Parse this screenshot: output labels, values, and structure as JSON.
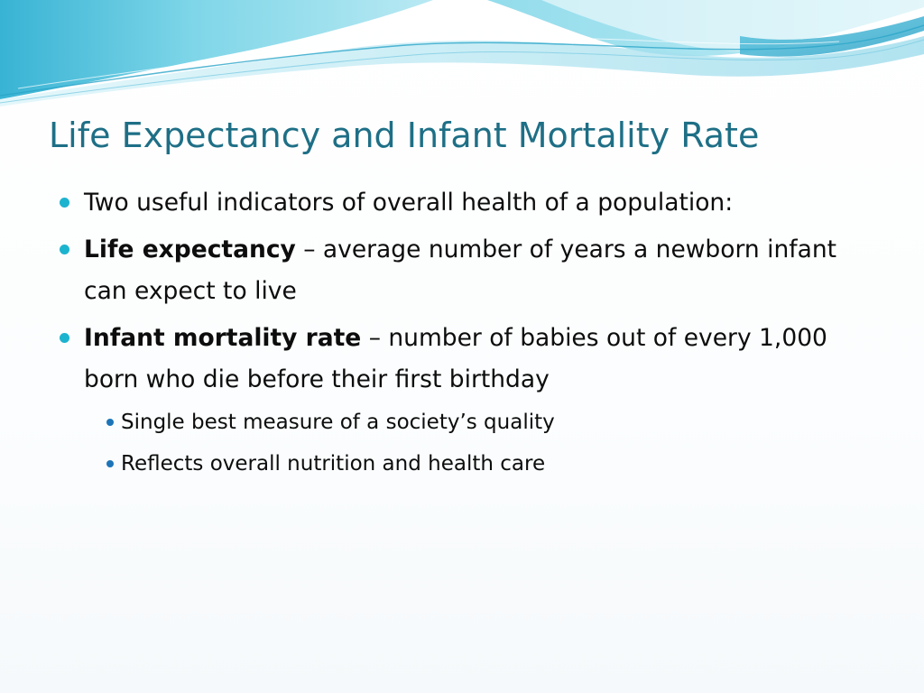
{
  "slide": {
    "title": "Life Expectancy and Infant Mortality Rate",
    "bullets": [
      {
        "term": "",
        "sep": "",
        "text": "Two useful indicators of overall health of a population:"
      },
      {
        "term": "Life expectancy",
        "sep": " – ",
        "text": "average number of years a newborn infant can expect to live"
      },
      {
        "term": "Infant mortality rate",
        "sep": " – ",
        "text": "number of babies out of every 1,000 born who die before their first birthday",
        "sub": [
          "Single best measure of a society’s quality",
          "Reflects overall nutrition and health care"
        ]
      }
    ]
  },
  "colors": {
    "title": "#1e6f86",
    "bullet_level1": "#1cb3cf",
    "bullet_level2": "#1d75b8",
    "wave_light": "#c8eef5",
    "wave_mid": "#7fd3e6",
    "wave_dark": "#3fb6d6"
  }
}
